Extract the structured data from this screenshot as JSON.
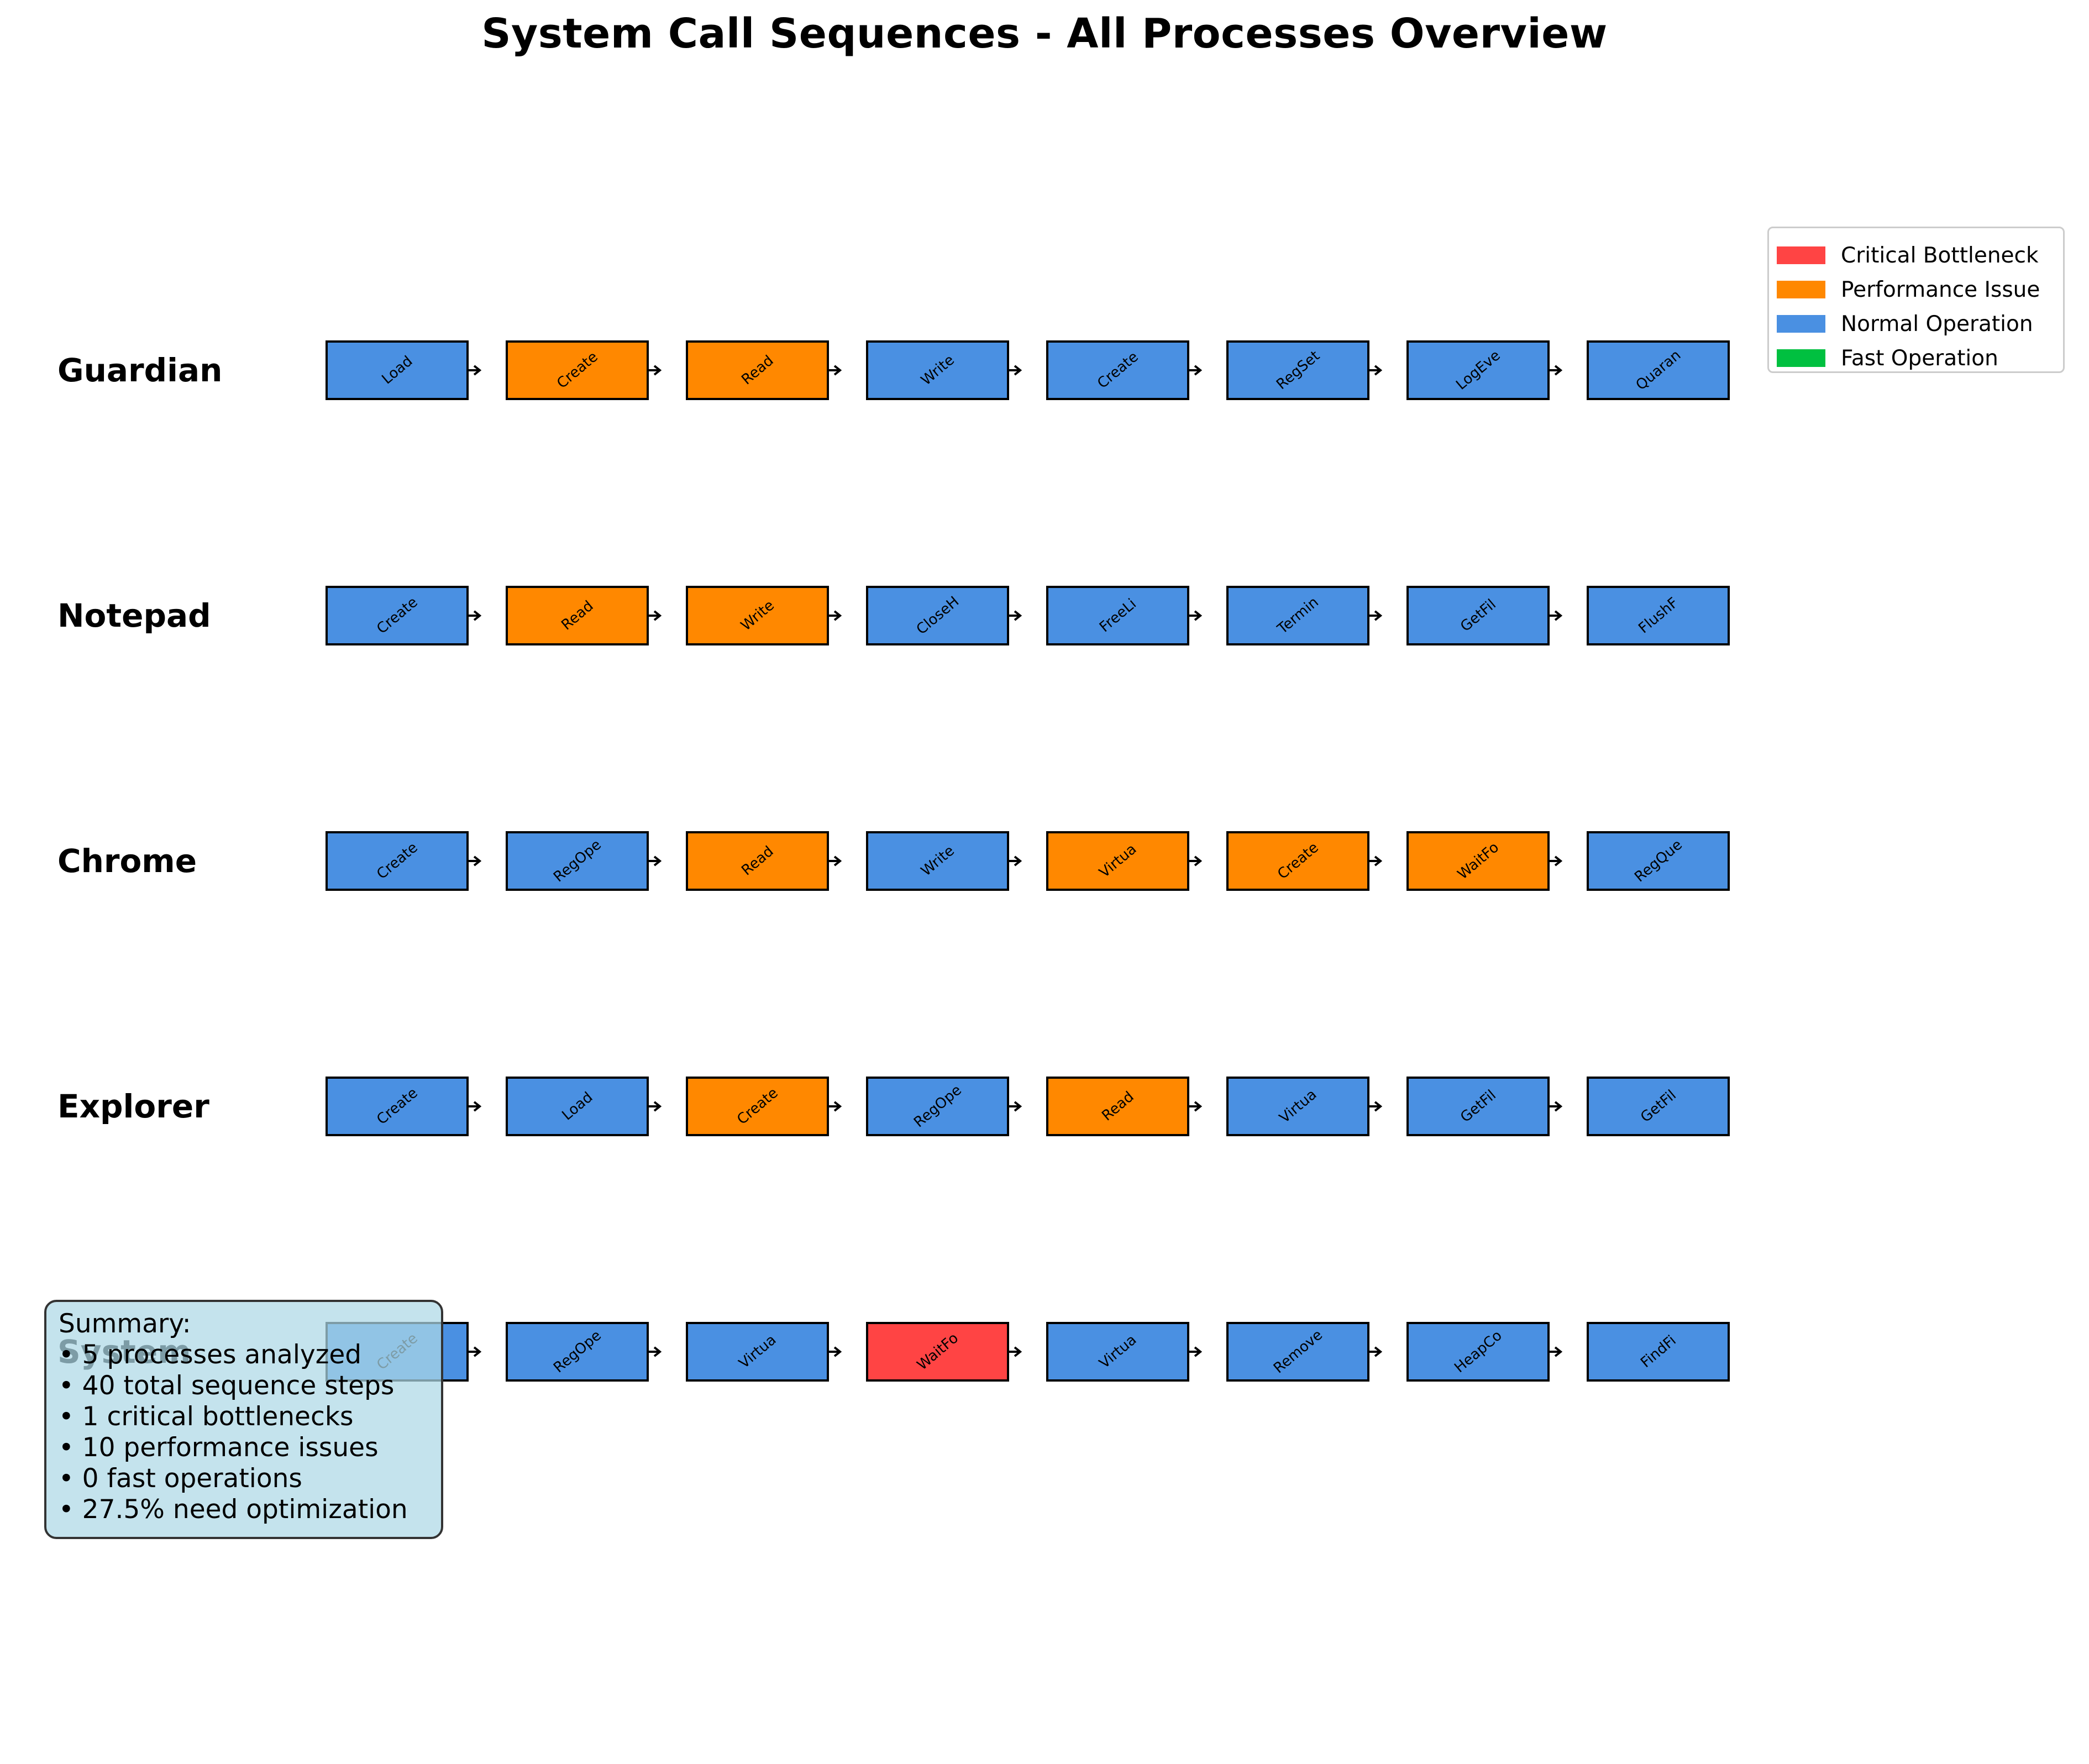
{
  "title": "System Call Sequences - All Processes Overview",
  "colors": {
    "critical": "#ff4444",
    "performance": "#ff8800",
    "normal": "#4a90e2",
    "fast": "#00c040"
  },
  "legend": [
    {
      "label": "Critical Bottleneck",
      "category": "critical"
    },
    {
      "label": "Performance Issue",
      "category": "performance"
    },
    {
      "label": "Normal Operation",
      "category": "normal"
    },
    {
      "label": "Fast Operation",
      "category": "fast"
    }
  ],
  "processes": [
    {
      "name": "Guardian",
      "steps": [
        {
          "label": "Load",
          "category": "normal"
        },
        {
          "label": "Create",
          "category": "performance"
        },
        {
          "label": "Read",
          "category": "performance"
        },
        {
          "label": "Write",
          "category": "normal"
        },
        {
          "label": "Create",
          "category": "normal"
        },
        {
          "label": "RegSet",
          "category": "normal"
        },
        {
          "label": "LogEve",
          "category": "normal"
        },
        {
          "label": "Quaran",
          "category": "normal"
        }
      ]
    },
    {
      "name": "Notepad",
      "steps": [
        {
          "label": "Create",
          "category": "normal"
        },
        {
          "label": "Read",
          "category": "performance"
        },
        {
          "label": "Write",
          "category": "performance"
        },
        {
          "label": "CloseH",
          "category": "normal"
        },
        {
          "label": "FreeLi",
          "category": "normal"
        },
        {
          "label": "Termin",
          "category": "normal"
        },
        {
          "label": "GetFil",
          "category": "normal"
        },
        {
          "label": "FlushF",
          "category": "normal"
        }
      ]
    },
    {
      "name": "Chrome",
      "steps": [
        {
          "label": "Create",
          "category": "normal"
        },
        {
          "label": "RegOpe",
          "category": "normal"
        },
        {
          "label": "Read",
          "category": "performance"
        },
        {
          "label": "Write",
          "category": "normal"
        },
        {
          "label": "Virtua",
          "category": "performance"
        },
        {
          "label": "Create",
          "category": "performance"
        },
        {
          "label": "WaitFo",
          "category": "performance"
        },
        {
          "label": "RegQue",
          "category": "normal"
        }
      ]
    },
    {
      "name": "Explorer",
      "steps": [
        {
          "label": "Create",
          "category": "normal"
        },
        {
          "label": "Load",
          "category": "normal"
        },
        {
          "label": "Create",
          "category": "performance"
        },
        {
          "label": "RegOpe",
          "category": "normal"
        },
        {
          "label": "Read",
          "category": "performance"
        },
        {
          "label": "Virtua",
          "category": "normal"
        },
        {
          "label": "GetFil",
          "category": "normal"
        },
        {
          "label": "GetFil",
          "category": "normal"
        }
      ]
    },
    {
      "name": "System",
      "steps": [
        {
          "label": "Create",
          "category": "normal"
        },
        {
          "label": "RegOpe",
          "category": "normal"
        },
        {
          "label": "Virtua",
          "category": "normal"
        },
        {
          "label": "WaitFo",
          "category": "critical"
        },
        {
          "label": "Virtua",
          "category": "normal"
        },
        {
          "label": "Remove",
          "category": "normal"
        },
        {
          "label": "HeapCo",
          "category": "normal"
        },
        {
          "label": "FindFi",
          "category": "normal"
        }
      ]
    }
  ],
  "summary": {
    "heading": "Summary:",
    "lines": [
      "• 5 processes analyzed",
      "• 40 total sequence steps",
      "• 1 critical bottlenecks",
      "• 10 performance issues",
      "• 0 fast operations",
      "• 27.5% need optimization"
    ]
  }
}
